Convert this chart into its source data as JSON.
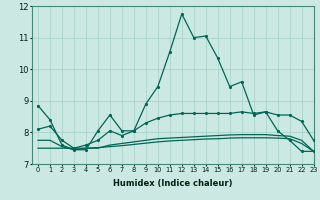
{
  "xlabel": "Humidex (Indice chaleur)",
  "ylabel": "",
  "bg_color": "#cbe8e2",
  "grid_color": "#aad4cc",
  "line_color": "#006655",
  "xlim": [
    -0.5,
    23
  ],
  "ylim": [
    7,
    12
  ],
  "yticks": [
    7,
    8,
    9,
    10,
    11,
    12
  ],
  "xticks": [
    0,
    1,
    2,
    3,
    4,
    5,
    6,
    7,
    8,
    9,
    10,
    11,
    12,
    13,
    14,
    15,
    16,
    17,
    18,
    19,
    20,
    21,
    22,
    23
  ],
  "line1_y": [
    8.85,
    8.4,
    7.6,
    7.45,
    7.45,
    8.05,
    8.55,
    8.05,
    8.05,
    8.9,
    9.45,
    10.55,
    11.75,
    11.0,
    11.05,
    10.35,
    9.45,
    9.6,
    8.55,
    8.65,
    8.05,
    7.75,
    7.4,
    7.4
  ],
  "line2_y": [
    8.1,
    8.2,
    7.75,
    7.5,
    7.6,
    7.75,
    8.05,
    7.9,
    8.05,
    8.3,
    8.45,
    8.55,
    8.6,
    8.6,
    8.6,
    8.6,
    8.6,
    8.65,
    8.6,
    8.65,
    8.55,
    8.55,
    8.35,
    7.75
  ],
  "line3_y": [
    7.75,
    7.75,
    7.55,
    7.45,
    7.5,
    7.5,
    7.6,
    7.65,
    7.7,
    7.75,
    7.8,
    7.82,
    7.84,
    7.86,
    7.88,
    7.9,
    7.92,
    7.93,
    7.93,
    7.93,
    7.9,
    7.88,
    7.75,
    7.4
  ],
  "line4_y": [
    7.5,
    7.5,
    7.5,
    7.5,
    7.5,
    7.52,
    7.55,
    7.58,
    7.62,
    7.66,
    7.7,
    7.73,
    7.75,
    7.77,
    7.79,
    7.8,
    7.82,
    7.83,
    7.83,
    7.83,
    7.82,
    7.8,
    7.65,
    7.4
  ]
}
